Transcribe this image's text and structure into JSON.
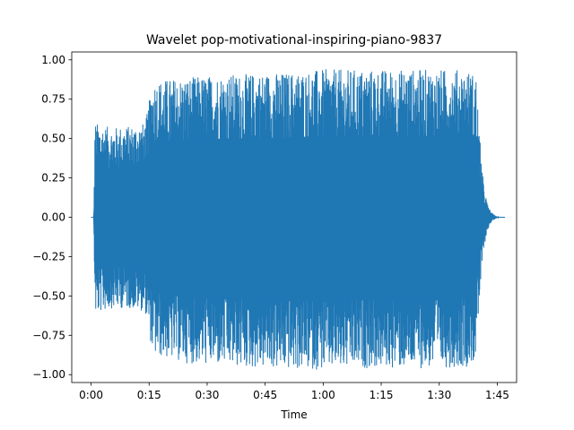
{
  "chart_data": {
    "type": "area",
    "title": "Wavelet pop-motivational-inspiring-piano-9837",
    "xlabel": "Time",
    "ylabel": "",
    "xlim": [
      -5,
      110
    ],
    "ylim": [
      -1.05,
      1.05
    ],
    "x_ticks": [
      {
        "value": 0,
        "label": "0:00"
      },
      {
        "value": 15,
        "label": "0:15"
      },
      {
        "value": 30,
        "label": "0:30"
      },
      {
        "value": 45,
        "label": "0:45"
      },
      {
        "value": 60,
        "label": "1:00"
      },
      {
        "value": 75,
        "label": "1:15"
      },
      {
        "value": 90,
        "label": "1:30"
      },
      {
        "value": 105,
        "label": "1:45"
      }
    ],
    "y_ticks": [
      {
        "value": 1.0,
        "label": "1.00"
      },
      {
        "value": 0.75,
        "label": "0.75"
      },
      {
        "value": 0.5,
        "label": "0.50"
      },
      {
        "value": 0.25,
        "label": "0.25"
      },
      {
        "value": 0.0,
        "label": "0.00"
      },
      {
        "value": -0.25,
        "label": "−0.25"
      },
      {
        "value": -0.5,
        "label": "−0.50"
      },
      {
        "value": -0.75,
        "label": "−0.75"
      },
      {
        "value": -1.0,
        "label": "−1.00"
      }
    ],
    "grid": false,
    "legend": "none",
    "color": "#1f77b4",
    "series": [
      {
        "x": [
          0,
          0.7,
          1,
          5,
          10,
          14,
          16,
          20,
          25,
          30,
          35,
          40,
          45,
          50,
          55,
          60,
          65,
          70,
          75,
          80,
          85,
          90,
          95,
          98,
          99.5,
          100.5,
          101.5,
          102.5,
          103.5,
          104.5,
          105.5,
          106.5,
          107
        ],
        "upper": [
          0,
          0,
          0.6,
          0.57,
          0.58,
          0.6,
          0.87,
          0.88,
          0.89,
          0.9,
          0.91,
          0.91,
          0.92,
          0.92,
          0.93,
          0.94,
          0.94,
          0.94,
          0.94,
          0.94,
          0.94,
          0.94,
          0.94,
          0.93,
          0.9,
          0.5,
          0.2,
          0.08,
          0.03,
          0.01,
          0,
          0,
          0
        ],
        "lower": [
          0,
          0,
          -0.62,
          -0.58,
          -0.58,
          -0.6,
          -0.88,
          -0.9,
          -0.93,
          -0.94,
          -0.95,
          -0.96,
          -0.96,
          -0.97,
          -0.97,
          -0.97,
          -0.97,
          -0.96,
          -0.96,
          -0.96,
          -0.96,
          -0.96,
          -0.95,
          -0.95,
          -0.9,
          -0.5,
          -0.2,
          -0.08,
          -0.03,
          -0.01,
          0,
          0,
          0
        ]
      }
    ]
  }
}
